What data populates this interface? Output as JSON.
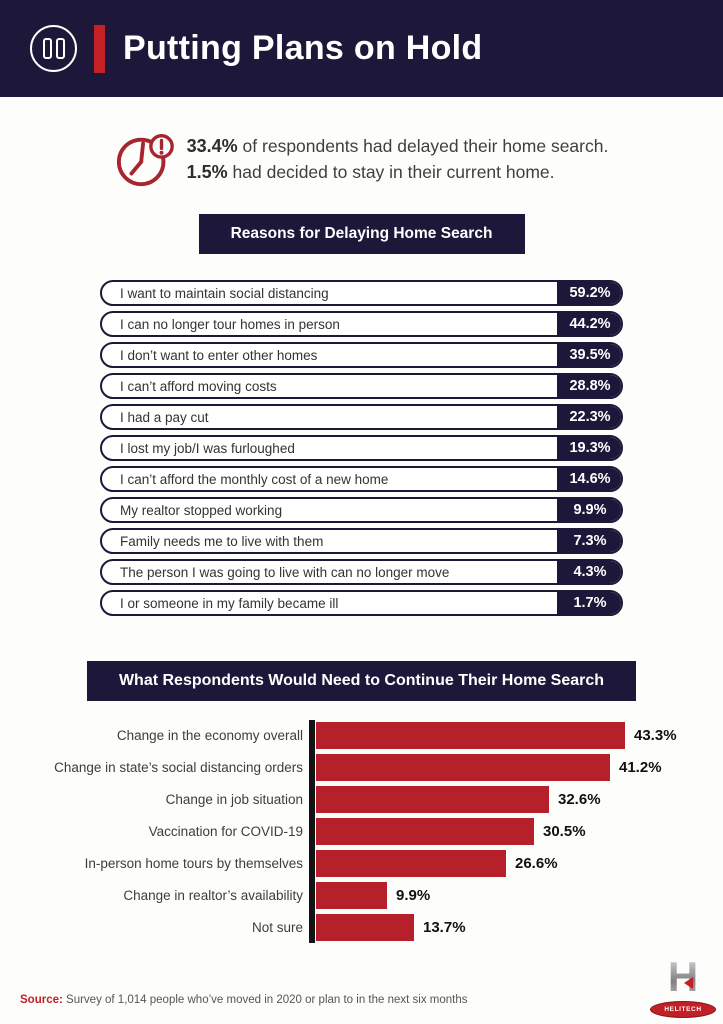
{
  "colors": {
    "navy": "#1d1839",
    "bar_red": "#b5202a",
    "accent_red": "#c42127",
    "text_dark": "#3d3d3d"
  },
  "icons": {
    "header_icon": "pause-icon",
    "callout_icon": "clock-alert-icon",
    "footer_icon": "helitech-logo"
  },
  "header": {
    "title": "Putting Plans on Hold"
  },
  "callout": {
    "stat1_value": "33.4%",
    "stat1_text": " of respondents had delayed their home search.",
    "stat2_value": "1.5%",
    "stat2_text": " had decided to stay in their current home."
  },
  "sections": {
    "reasons_title": "Reasons for Delaying Home Search",
    "continue_title": "What Respondents Would Need to Continue Their Home Search"
  },
  "chart_data": [
    {
      "type": "bar",
      "title": "Reasons for Delaying Home Search",
      "orientation": "horizontal",
      "value_format": "percent",
      "categories": [
        "I want to maintain social distancing",
        "I can no longer tour homes in person",
        "I don’t want to enter other homes",
        "I can’t afford moving costs",
        "I had a pay cut",
        "I lost my job/I was furloughed",
        "I can’t afford the monthly cost of a new home",
        "My realtor stopped working",
        "Family needs me to live with them",
        "The person I was going to live with can no longer move",
        "I or someone in my family became ill"
      ],
      "values": [
        59.2,
        44.2,
        39.5,
        28.8,
        22.3,
        19.3,
        14.6,
        9.9,
        7.3,
        4.3,
        1.7
      ],
      "labels": [
        "59.2%",
        "44.2%",
        "39.5%",
        "28.8%",
        "22.3%",
        "19.3%",
        "14.6%",
        "9.9%",
        "7.3%",
        "4.3%",
        "1.7%"
      ]
    },
    {
      "type": "bar",
      "title": "What Respondents Would Need to Continue Their Home Search",
      "orientation": "horizontal",
      "value_format": "percent",
      "xlim": [
        0,
        45
      ],
      "categories": [
        "Change in the economy overall",
        "Change in state’s social distancing orders",
        "Change in job situation",
        "Vaccination for COVID-19",
        "In-person home tours by themselves",
        "Change in realtor’s availability",
        "Not sure"
      ],
      "values": [
        43.3,
        41.2,
        32.6,
        30.5,
        26.6,
        9.9,
        13.7
      ],
      "labels": [
        "43.3%",
        "41.2%",
        "32.6%",
        "30.5%",
        "26.6%",
        "9.9%",
        "13.7%"
      ]
    }
  ],
  "footer": {
    "source_label": "Source:",
    "source_text": " Survey of 1,014 people who’ve moved in 2020 or plan to in the next six months",
    "logo_text": "HELITECH",
    "logo_letter": "H"
  }
}
